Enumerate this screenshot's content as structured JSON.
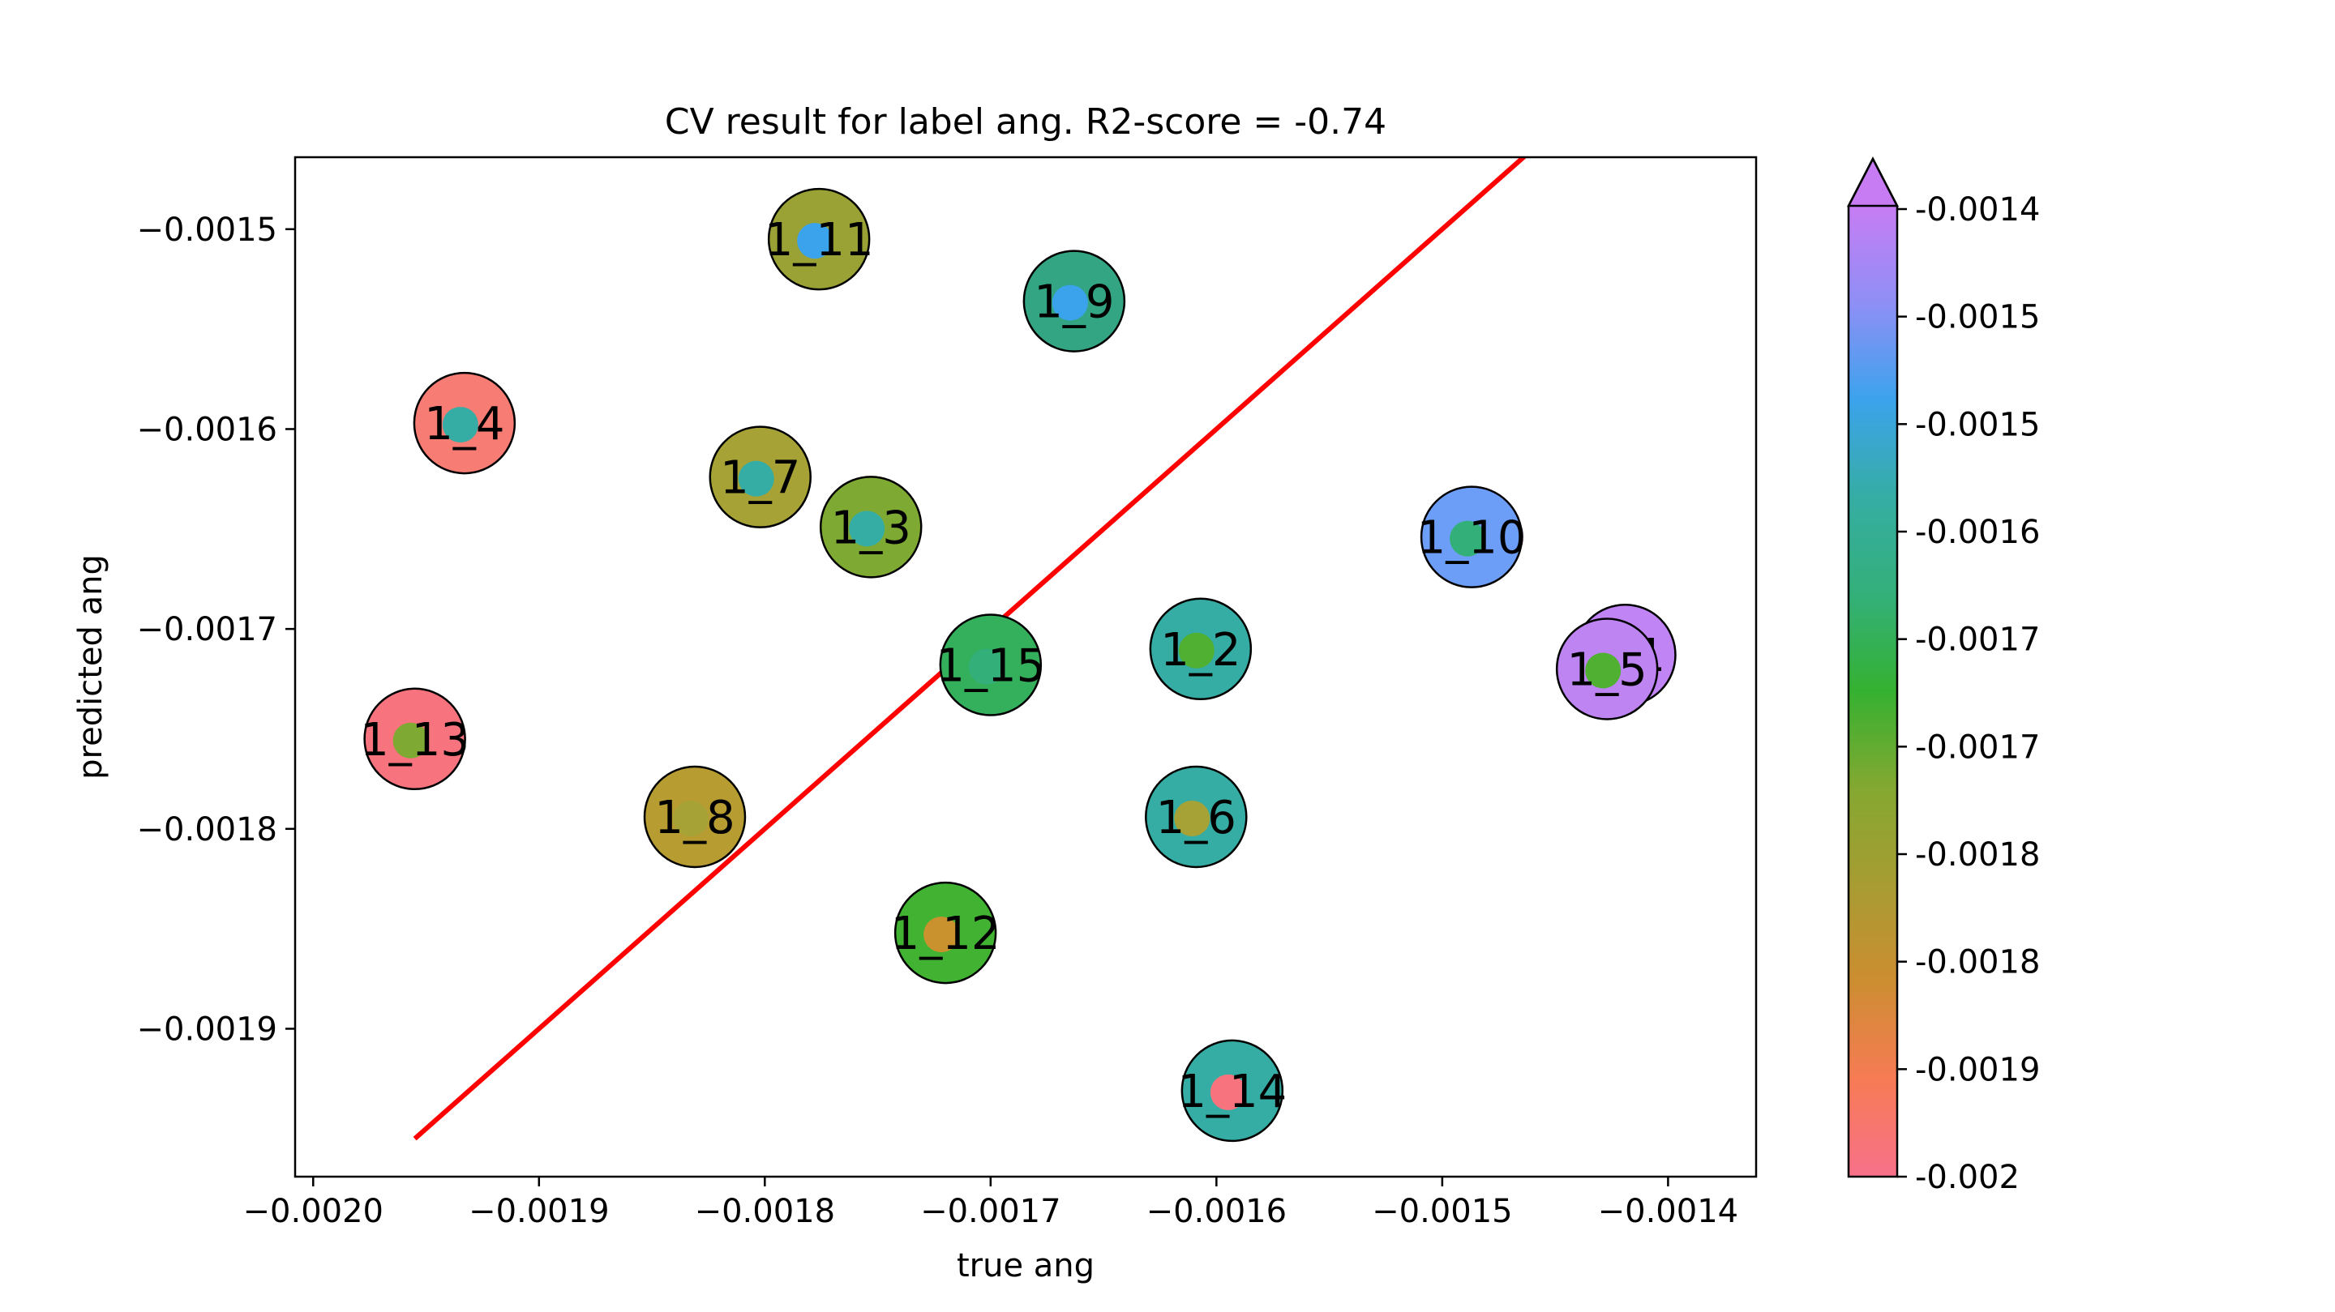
{
  "chart_data": {
    "type": "scatter",
    "title": "CV result for label ang. R2-score = -0.74",
    "xlabel": "true ang",
    "ylabel": "predicted ang",
    "xlim": [
      -0.002008,
      -0.001361
    ],
    "ylim": [
      -0.001974,
      -0.001464
    ],
    "x_ticks": [
      -0.002,
      -0.0019,
      -0.0018,
      -0.0017,
      -0.0016,
      -0.0015,
      -0.0014
    ],
    "x_tick_labels": [
      "−0.0020",
      "−0.0019",
      "−0.0018",
      "−0.0017",
      "−0.0016",
      "−0.0015",
      "−0.0014"
    ],
    "y_ticks": [
      -0.0015,
      -0.0016,
      -0.0017,
      -0.0018,
      -0.0019
    ],
    "y_tick_labels": [
      "−0.0015",
      "−0.0016",
      "−0.0017",
      "−0.0018",
      "−0.0019"
    ],
    "identity_line": {
      "from": -0.001955,
      "to": -0.001455,
      "color": "#ff0000"
    },
    "points": [
      {
        "label": "1_11",
        "x": -0.001776,
        "y": -0.001505,
        "true_color": "#9ba235",
        "pred_color": "#3ba3ec"
      },
      {
        "label": "1_9",
        "x": -0.001663,
        "y": -0.001536,
        "true_color": "#33a582",
        "pred_color": "#3ba3ec"
      },
      {
        "label": "1_4",
        "x": -0.001933,
        "y": -0.001597,
        "true_color": "#f77c74",
        "pred_color": "#36ada4"
      },
      {
        "label": "1_7",
        "x": -0.001802,
        "y": -0.001624,
        "true_color": "#a6a235",
        "pred_color": "#36ada4"
      },
      {
        "label": "1_3",
        "x": -0.001753,
        "y": -0.001649,
        "true_color": "#7eaa33",
        "pred_color": "#36ada4"
      },
      {
        "label": "1_10",
        "x": -0.001487,
        "y": -0.001654,
        "true_color": "#6c9ef7",
        "pred_color": "#33b07a"
      },
      {
        "label": "1_1",
        "x": -0.001419,
        "y": -0.001713,
        "true_color": "#c184f4",
        "pred_color": "#4fb031"
      },
      {
        "label": "1_5",
        "x": -0.001427,
        "y": -0.00172,
        "true_color": "#be85f2",
        "pred_color": "#4fb031"
      },
      {
        "label": "1_2",
        "x": -0.001607,
        "y": -0.00171,
        "true_color": "#36ada4",
        "pred_color": "#4fb031"
      },
      {
        "label": "1_15",
        "x": -0.0017,
        "y": -0.001718,
        "true_color": "#34af5c",
        "pred_color": "#33b07a"
      },
      {
        "label": "1_13",
        "x": -0.001955,
        "y": -0.001755,
        "true_color": "#f7747e",
        "pred_color": "#7eaa33"
      },
      {
        "label": "1_8",
        "x": -0.001831,
        "y": -0.001794,
        "true_color": "#b79c31",
        "pred_color": "#a6a235"
      },
      {
        "label": "1_6",
        "x": -0.001609,
        "y": -0.001794,
        "true_color": "#36ada4",
        "pred_color": "#a6a235"
      },
      {
        "label": "1_12",
        "x": -0.00172,
        "y": -0.001852,
        "true_color": "#41b232",
        "pred_color": "#c9922f"
      },
      {
        "label": "1_14",
        "x": -0.001593,
        "y": -0.001931,
        "true_color": "#36ada4",
        "pred_color": "#f7747e"
      }
    ],
    "colorbar": {
      "tick_labels": [
        "-0.0014",
        "-0.0015",
        "-0.0015",
        "-0.0016",
        "-0.0017",
        "-0.0017",
        "-0.0018",
        "-0.0018",
        "-0.0019",
        "-0.002"
      ],
      "gradient_top_to_bottom": [
        "#c77cf3",
        "#8f8ff6",
        "#3ba3ec",
        "#36ada4",
        "#33b07a",
        "#35b131",
        "#84a831",
        "#a89c32",
        "#cd8d31",
        "#f77b55",
        "#f77189"
      ],
      "extend": "max"
    },
    "grid": false,
    "legend": "none"
  }
}
